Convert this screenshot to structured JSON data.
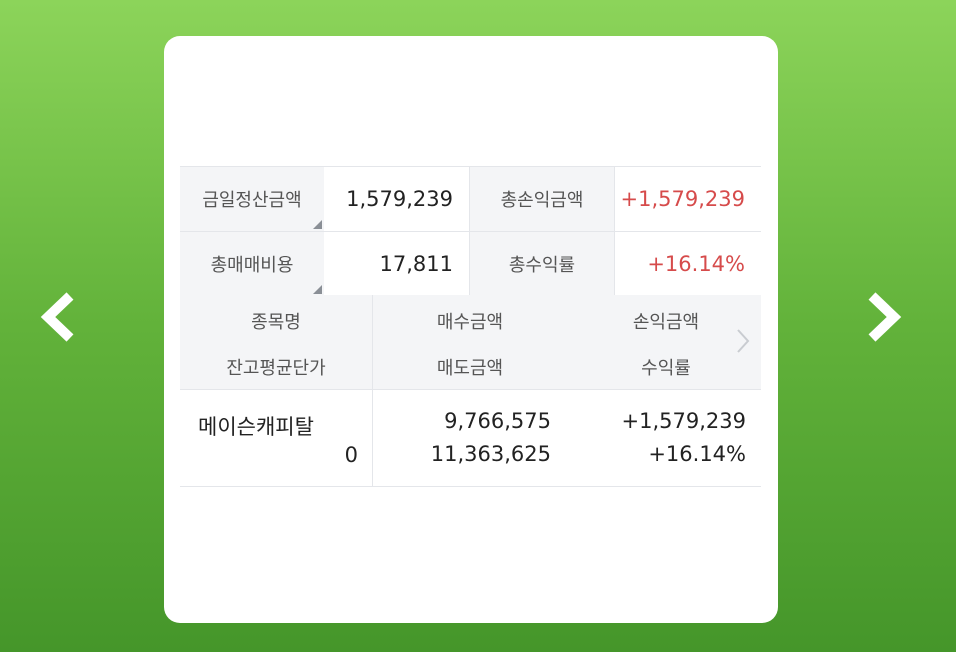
{
  "nav": {
    "prev_glyph": "<",
    "next_glyph": ">"
  },
  "summary": {
    "rows": [
      {
        "label1": "금일정산금액",
        "value1": "1,579,239",
        "label2": "총손익금액",
        "value2": "+1,579,239"
      },
      {
        "label1": "총매매비용",
        "value1": "17,811",
        "label2": "총수익률",
        "value2": "+16.14%"
      }
    ]
  },
  "table": {
    "headers": {
      "stock_name": "종목명",
      "avg_price": "잔고평균단가",
      "buy_amount": "매수금액",
      "sell_amount": "매도금액",
      "pnl_amount": "손익금액",
      "return_rate": "수익률"
    },
    "rows": [
      {
        "stock_name": "메이슨캐피탈",
        "avg_price": "0",
        "buy_amount": "9,766,575",
        "sell_amount": "11,363,625",
        "pnl_amount": "+1,579,239",
        "return_rate": "+16.14%"
      }
    ]
  },
  "colors": {
    "positive": "#d64b4b",
    "sell_header": "#4b85c9",
    "background_top": "#8cd45a",
    "background_bottom": "#45962a"
  },
  "icons": {
    "prev": "chevron-left-icon",
    "next": "chevron-right-icon",
    "scroll_right": "chevron-right-icon",
    "dropdown_corner": "corner-triangle-icon"
  }
}
